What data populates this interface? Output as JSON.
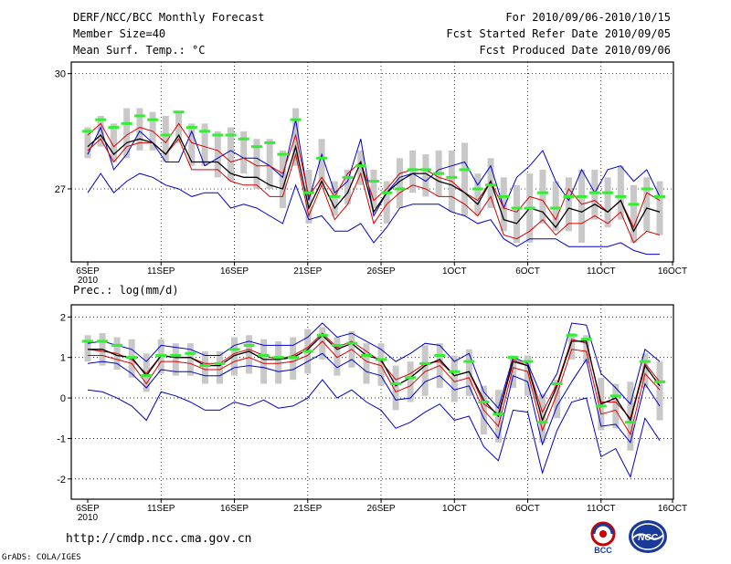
{
  "header": {
    "title": "DERF/NCC/BCC Monthly Forecast",
    "member_size": "Member Size=40",
    "variable": "Mean Surf. Temp.: °C",
    "period": "For 2010/09/06-2010/10/15",
    "started": "Fcst Started Refer Date 2010/09/05",
    "produced": "Fcst Produced Date 2010/09/06"
  },
  "footer": {
    "url": "http://cmdp.ncc.cma.gov.cn",
    "credit": "GrADS: COLA/IGES",
    "logo_bcc": "BCC",
    "logo_ncc": "NCC"
  },
  "colors": {
    "median": "#000000",
    "bounds": "#0000cc",
    "quartiles": "#dd0000",
    "obs": "#33ee33",
    "bar": "#c8c8c8"
  },
  "chart_data": [
    {
      "type": "line",
      "title": "Mean Surf. Temp.: °C",
      "x_tick_labels": [
        "6SEP",
        "11SEP",
        "16SEP",
        "21SEP",
        "26SEP",
        "1OCT",
        "6OCT",
        "11OCT",
        "16OCT"
      ],
      "x_first_sub": "2010",
      "y_ticks": [
        27,
        30
      ],
      "ylim": [
        25.1,
        30.3
      ],
      "series": [
        {
          "name": "max",
          "values": [
            27.9,
            28.6,
            27.5,
            27.9,
            28.5,
            28.2,
            27.7,
            27.7,
            28.5,
            27.6,
            27.8,
            28.0,
            27.8,
            27.8,
            27.6,
            27.3,
            28.8,
            26.7,
            27.9,
            26.9,
            27.2,
            28.3,
            26.3,
            26.9,
            27.3,
            27.4,
            27.2,
            27.5,
            27.6,
            27.7,
            27.1,
            27.6,
            26.5,
            27.3,
            27.6,
            28.0,
            27.2,
            26.7,
            27.5,
            26.9,
            27.5,
            27.6,
            27.2,
            27.5,
            26.8
          ]
        },
        {
          "name": "q3",
          "values": [
            28.4,
            28.7,
            28.1,
            28.4,
            28.6,
            28.5,
            28.2,
            28.7,
            28.2,
            28.1,
            28.0,
            27.7,
            27.8,
            27.6,
            27.6,
            27.4,
            28.4,
            26.8,
            27.3,
            26.8,
            27.4,
            27.7,
            26.7,
            27.0,
            27.4,
            27.5,
            27.5,
            27.3,
            27.2,
            26.9,
            26.7,
            27.2,
            26.5,
            26.4,
            26.8,
            26.7,
            26.2,
            27.0,
            26.6,
            26.7,
            26.4,
            26.7,
            26.0,
            26.9,
            26.7
          ]
        },
        {
          "name": "median",
          "values": [
            28.1,
            28.4,
            27.9,
            28.2,
            28.3,
            28.2,
            27.9,
            28.4,
            27.7,
            27.7,
            27.7,
            27.4,
            27.3,
            27.3,
            27.1,
            27.0,
            28.1,
            26.5,
            27.2,
            26.5,
            26.9,
            27.7,
            26.4,
            26.9,
            27.2,
            27.4,
            27.4,
            27.2,
            27.1,
            26.9,
            26.6,
            27.2,
            26.2,
            26.1,
            26.5,
            26.4,
            26.0,
            26.5,
            26.4,
            26.6,
            26.4,
            26.7,
            25.9,
            26.5,
            26.4
          ]
        },
        {
          "name": "q1",
          "values": [
            28.0,
            28.3,
            27.7,
            28.1,
            28.2,
            28.2,
            27.9,
            28.3,
            27.5,
            27.5,
            27.5,
            27.2,
            27.1,
            27.1,
            26.8,
            26.8,
            27.9,
            26.3,
            27.1,
            26.2,
            26.6,
            27.4,
            26.1,
            26.6,
            26.9,
            27.1,
            27.0,
            26.8,
            26.8,
            26.6,
            26.3,
            26.8,
            25.8,
            25.7,
            25.9,
            26.2,
            25.8,
            26.1,
            26.1,
            26.3,
            26.1,
            26.4,
            25.6,
            25.9,
            25.8
          ]
        },
        {
          "name": "min",
          "values": [
            26.9,
            27.4,
            26.9,
            27.2,
            27.4,
            27.3,
            27.1,
            27.0,
            26.8,
            26.9,
            26.9,
            26.5,
            26.6,
            26.5,
            26.3,
            26.1,
            27.1,
            26.2,
            26.3,
            25.9,
            25.9,
            26.1,
            25.6,
            26.0,
            26.5,
            26.6,
            26.6,
            26.6,
            26.4,
            26.3,
            26.1,
            26.2,
            25.7,
            25.5,
            25.7,
            25.7,
            25.7,
            25.5,
            25.5,
            25.5,
            25.5,
            25.6,
            25.4,
            25.3,
            25.3
          ]
        },
        {
          "name": "observed",
          "values": [
            28.5,
            28.8,
            28.6,
            28.7,
            28.9,
            28.8,
            28.4,
            29.0,
            28.6,
            28.5,
            28.4,
            28.4,
            28.3,
            28.1,
            28.2,
            27.9,
            28.8,
            26.9,
            27.8,
            26.8,
            27.3,
            27.6,
            27.2,
            26.9,
            27.0,
            27.5,
            27.5,
            27.4,
            27.3,
            27.5,
            27.0,
            27.1,
            26.8,
            26.5,
            26.5,
            26.9,
            26.5,
            26.8,
            26.8,
            26.9,
            26.9,
            26.8,
            26.6,
            27.0,
            26.8
          ]
        },
        {
          "name": "range_high",
          "values": [
            28.6,
            28.9,
            28.7,
            29.1,
            29.1,
            29.0,
            28.9,
            29.0,
            28.7,
            28.7,
            28.5,
            28.6,
            28.5,
            28.3,
            28.3,
            28.0,
            29.1,
            27.5,
            28.3,
            27.2,
            27.5,
            28.0,
            27.5,
            27.2,
            27.8,
            28.0,
            27.9,
            28.0,
            28.0,
            28.2,
            27.4,
            27.8,
            27.3,
            27.1,
            27.4,
            27.5,
            27.2,
            27.3,
            27.5,
            27.5,
            27.3,
            27.6,
            27.1,
            27.3,
            27.2
          ]
        },
        {
          "name": "range_low",
          "values": [
            27.8,
            28.1,
            27.7,
            27.8,
            28.0,
            28.0,
            27.7,
            28.2,
            27.6,
            27.6,
            27.3,
            27.2,
            27.4,
            27.0,
            27.0,
            26.5,
            27.6,
            26.1,
            27.1,
            26.3,
            26.6,
            27.1,
            26.5,
            26.1,
            26.5,
            26.9,
            26.8,
            26.8,
            26.4,
            26.3,
            26.3,
            26.5,
            25.9,
            25.6,
            25.6,
            26.1,
            25.9,
            25.9,
            25.6,
            26.2,
            26.0,
            26.2,
            25.6,
            25.9,
            25.8
          ]
        }
      ]
    },
    {
      "type": "line",
      "title": "Prec.: log(mm/d)",
      "x_tick_labels": [
        "6SEP",
        "11SEP",
        "16SEP",
        "21SEP",
        "26SEP",
        "1OCT",
        "6OCT",
        "11OCT",
        "16OCT"
      ],
      "x_first_sub": "2010",
      "y_ticks": [
        -2,
        -1,
        0,
        1,
        2
      ],
      "ylim": [
        -2.5,
        2.3
      ],
      "series": [
        {
          "name": "max",
          "values": [
            1.35,
            1.4,
            1.3,
            1.2,
            0.9,
            1.3,
            1.25,
            1.2,
            1.05,
            1.05,
            1.3,
            1.4,
            1.3,
            1.3,
            1.3,
            1.5,
            1.85,
            1.5,
            1.6,
            1.4,
            1.2,
            0.9,
            1.1,
            1.35,
            1.3,
            0.9,
            1.1,
            0.15,
            -0.25,
            1.0,
            0.85,
            0.0,
            0.6,
            1.85,
            1.8,
            0.6,
            0.25,
            -0.15,
            1.2,
            0.9
          ]
        },
        {
          "name": "q3",
          "values": [
            1.2,
            1.15,
            1.1,
            0.95,
            0.6,
            1.05,
            1.0,
            1.0,
            0.85,
            0.85,
            1.1,
            1.2,
            1.05,
            0.95,
            1.05,
            1.25,
            1.6,
            1.25,
            1.4,
            1.15,
            0.9,
            0.45,
            0.6,
            0.85,
            0.9,
            0.55,
            0.65,
            -0.15,
            -0.4,
            0.95,
            0.8,
            -0.35,
            0.35,
            1.45,
            1.35,
            -0.1,
            -0.1,
            -0.5,
            0.85,
            0.4
          ]
        },
        {
          "name": "median",
          "values": [
            1.2,
            1.2,
            1.05,
            1.0,
            0.55,
            1.05,
            1.0,
            1.0,
            0.8,
            0.8,
            1.05,
            1.15,
            0.95,
            0.95,
            1.0,
            1.2,
            1.55,
            1.2,
            1.35,
            1.05,
            0.95,
            0.3,
            0.5,
            0.8,
            0.95,
            0.55,
            0.65,
            -0.05,
            -0.45,
            0.9,
            0.8,
            -0.55,
            0.3,
            1.4,
            1.4,
            -0.15,
            0.0,
            -0.55,
            0.8,
            0.3
          ]
        },
        {
          "name": "q1",
          "values": [
            1.05,
            1.05,
            0.95,
            0.85,
            0.35,
            0.9,
            0.9,
            0.85,
            0.7,
            0.7,
            0.9,
            1.0,
            0.85,
            0.85,
            0.9,
            1.05,
            1.4,
            1.0,
            1.2,
            0.9,
            0.8,
            0.15,
            0.3,
            0.65,
            0.8,
            0.4,
            0.5,
            -0.3,
            -0.7,
            0.75,
            0.65,
            -0.8,
            0.1,
            1.2,
            1.15,
            -0.4,
            -0.3,
            -0.9,
            0.6,
            0.2
          ]
        },
        {
          "name": "min",
          "values": [
            0.85,
            0.9,
            0.85,
            0.6,
            0.25,
            0.7,
            0.65,
            0.65,
            0.55,
            0.55,
            0.75,
            0.8,
            0.75,
            0.65,
            0.7,
            0.9,
            1.1,
            0.75,
            0.95,
            0.65,
            0.55,
            -0.05,
            0.0,
            0.4,
            0.55,
            0.2,
            0.3,
            -0.5,
            -1.0,
            0.55,
            0.4,
            -1.15,
            -0.2,
            0.4,
            0.95,
            -0.7,
            -0.65,
            -1.1,
            0.35,
            -0.2
          ]
        },
        {
          "name": "lowest",
          "values": [
            0.2,
            0.15,
            0.0,
            -0.2,
            -0.55,
            0.15,
            0.05,
            -0.1,
            -0.3,
            -0.3,
            -0.1,
            -0.2,
            -0.05,
            -0.25,
            -0.2,
            0.0,
            0.45,
            0.0,
            0.2,
            -0.1,
            -0.3,
            -0.75,
            -0.6,
            -0.35,
            -0.15,
            -0.55,
            -0.45,
            -1.2,
            -1.55,
            -0.3,
            -0.35,
            -1.85,
            -0.8,
            -0.1,
            0.0,
            -1.45,
            -1.25,
            -1.95,
            -0.5,
            -1.05
          ]
        },
        {
          "name": "observed",
          "values": [
            1.4,
            1.4,
            1.3,
            1.0,
            0.55,
            1.05,
            1.05,
            1.1,
            0.8,
            0.85,
            1.2,
            1.3,
            1.05,
            1.0,
            1.0,
            1.15,
            1.55,
            1.3,
            1.35,
            1.05,
            0.95,
            0.35,
            0.5,
            0.85,
            1.05,
            0.65,
            0.9,
            -0.1,
            -0.4,
            1.0,
            0.9,
            -0.6,
            0.35,
            1.55,
            1.45,
            -0.2,
            0.05,
            -0.6,
            0.9,
            0.4
          ]
        },
        {
          "name": "range_high",
          "values": [
            1.55,
            1.6,
            1.5,
            1.45,
            1.1,
            1.45,
            1.35,
            1.35,
            1.15,
            1.15,
            1.5,
            1.55,
            1.45,
            1.4,
            1.5,
            1.7,
            1.75,
            1.5,
            1.65,
            1.35,
            1.35,
            0.8,
            0.9,
            1.3,
            1.35,
            1.05,
            1.2,
            0.3,
            0.2,
            1.05,
            1.05,
            0.1,
            0.45,
            1.6,
            1.55,
            0.5,
            0.35,
            0.4,
            1.1,
            0.9
          ]
        },
        {
          "name": "range_low",
          "values": [
            0.9,
            0.8,
            0.7,
            0.5,
            0.15,
            0.6,
            0.55,
            0.55,
            0.35,
            0.35,
            0.55,
            0.6,
            0.35,
            0.35,
            0.45,
            0.6,
            0.95,
            0.55,
            0.75,
            0.35,
            0.3,
            -0.3,
            -0.1,
            0.05,
            0.25,
            -0.1,
            0.05,
            -0.9,
            -1.1,
            0.25,
            0.05,
            -1.1,
            -0.5,
            0.95,
            0.85,
            -0.8,
            -0.75,
            -1.3,
            0.25,
            -0.55
          ]
        }
      ]
    }
  ]
}
